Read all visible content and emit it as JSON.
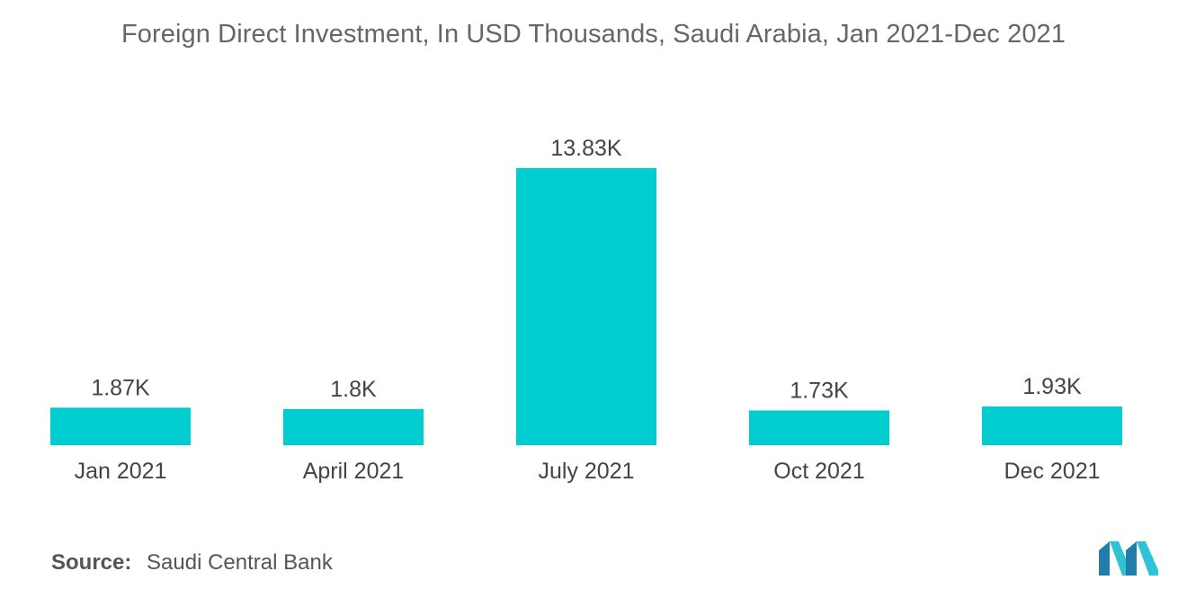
{
  "title": "Foreign Direct Investment, In USD Thousands, Saudi Arabia, Jan 2021-Dec 2021",
  "source": {
    "label": "Source:",
    "value": "Saudi Central Bank"
  },
  "colors": {
    "bar": "#00CDD0",
    "text": "#444444",
    "title": "#666666"
  },
  "chart_data": {
    "type": "bar",
    "title": "Foreign Direct Investment, In USD Thousands, Saudi Arabia, Jan 2021-Dec 2021",
    "categories": [
      "Jan 2021",
      "April 2021",
      "July 2021",
      "Oct 2021",
      "Dec 2021"
    ],
    "values": [
      1.87,
      1.8,
      13.83,
      1.73,
      1.93
    ],
    "value_labels": [
      "1.87K",
      "1.8K",
      "13.83K",
      "1.73K",
      "1.93K"
    ],
    "xlabel": "",
    "ylabel": "",
    "grid": false,
    "legend": "none"
  }
}
